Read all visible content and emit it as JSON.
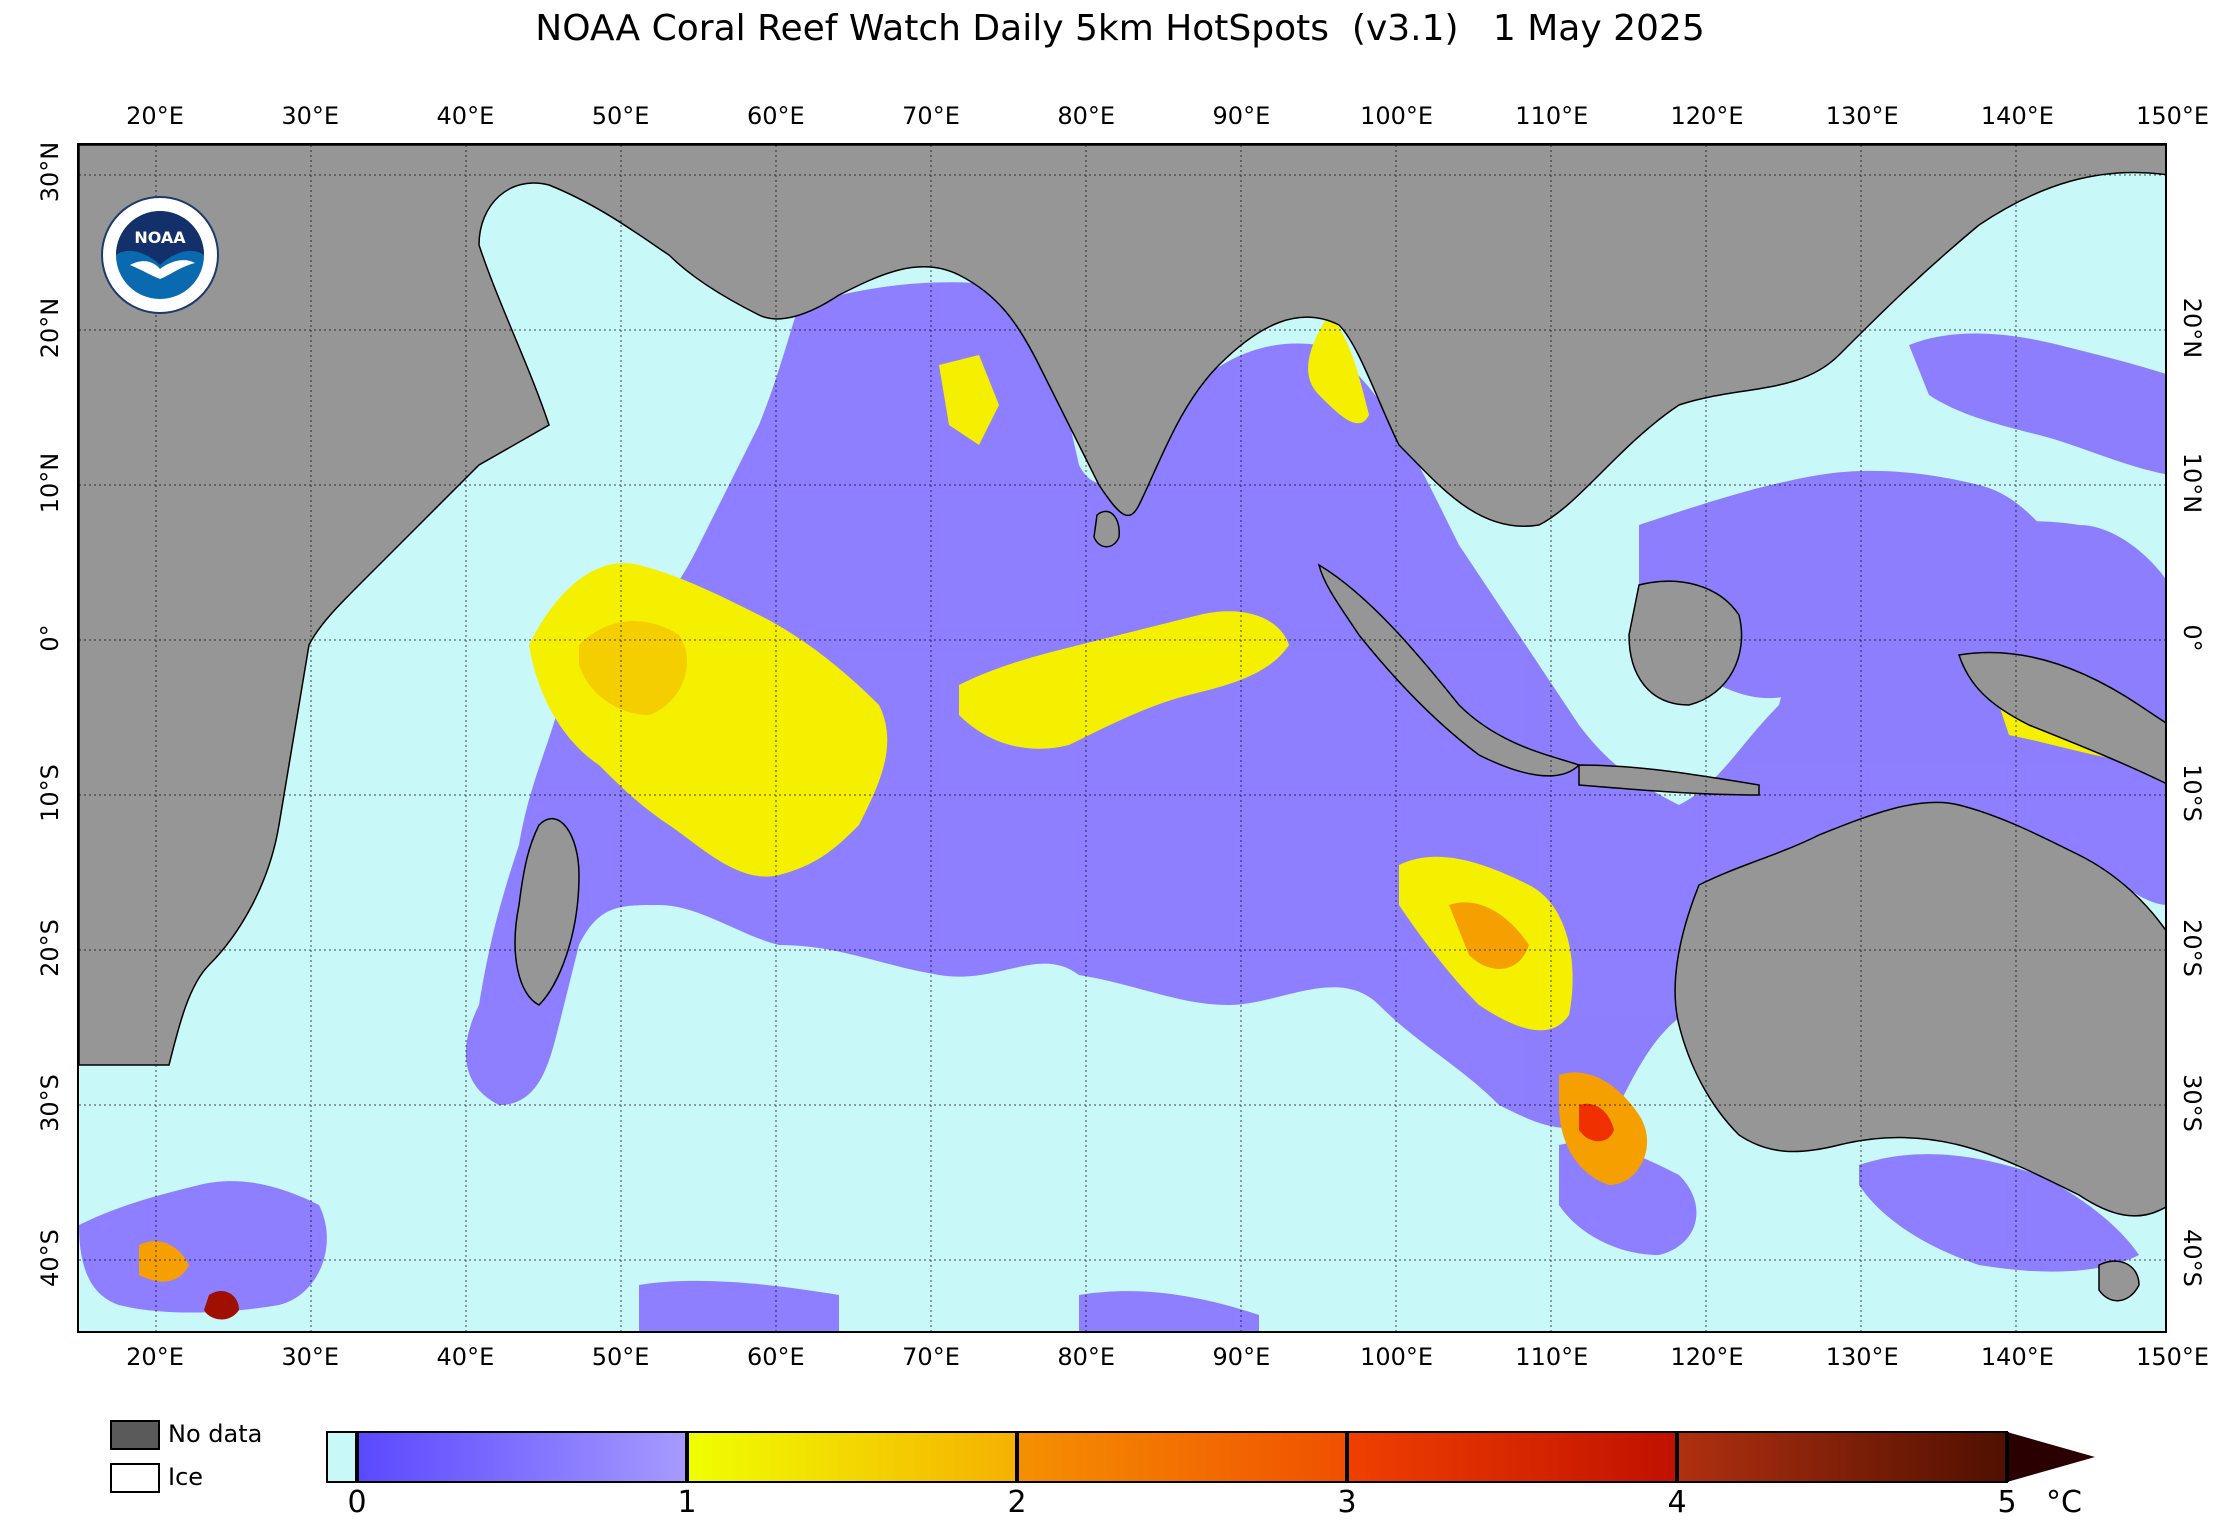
{
  "title": "NOAA Coral Reef Watch Daily 5km HotSpots  (v3.1)   1 May 2025",
  "lon_ticks": [
    "20°E",
    "30°E",
    "40°E",
    "50°E",
    "60°E",
    "70°E",
    "80°E",
    "90°E",
    "100°E",
    "110°E",
    "120°E",
    "130°E",
    "140°E",
    "150°E"
  ],
  "lat_ticks_left": [
    "30°N",
    "20°N",
    "10°N",
    "0°",
    "10°S",
    "20°S",
    "30°S",
    "40°S"
  ],
  "lat_ticks_right": [
    "20°N",
    "10°N",
    "0°",
    "10°S",
    "20°S",
    "30°S",
    "40°S"
  ],
  "map": {
    "lon_range": [
      15,
      150
    ],
    "lat_range": [
      -45,
      32
    ],
    "colors": {
      "ocean_ice_free": "#c8f8f8",
      "land": "#969696",
      "hotspot_low": "#8a78ff",
      "hotspot_1": "#f5f000",
      "hotspot_2": "#f5a000",
      "hotspot_3": "#f03000",
      "hotspot_4": "#a01000"
    }
  },
  "logo": {
    "text": "NOAA"
  },
  "legend": {
    "nodata_label": "No data",
    "ice_label": "Ice",
    "colorbar_ticks": [
      "0",
      "1",
      "2",
      "3",
      "4",
      "5"
    ],
    "colorbar_unit": "°C",
    "colorbar_range": [
      0,
      5
    ]
  }
}
